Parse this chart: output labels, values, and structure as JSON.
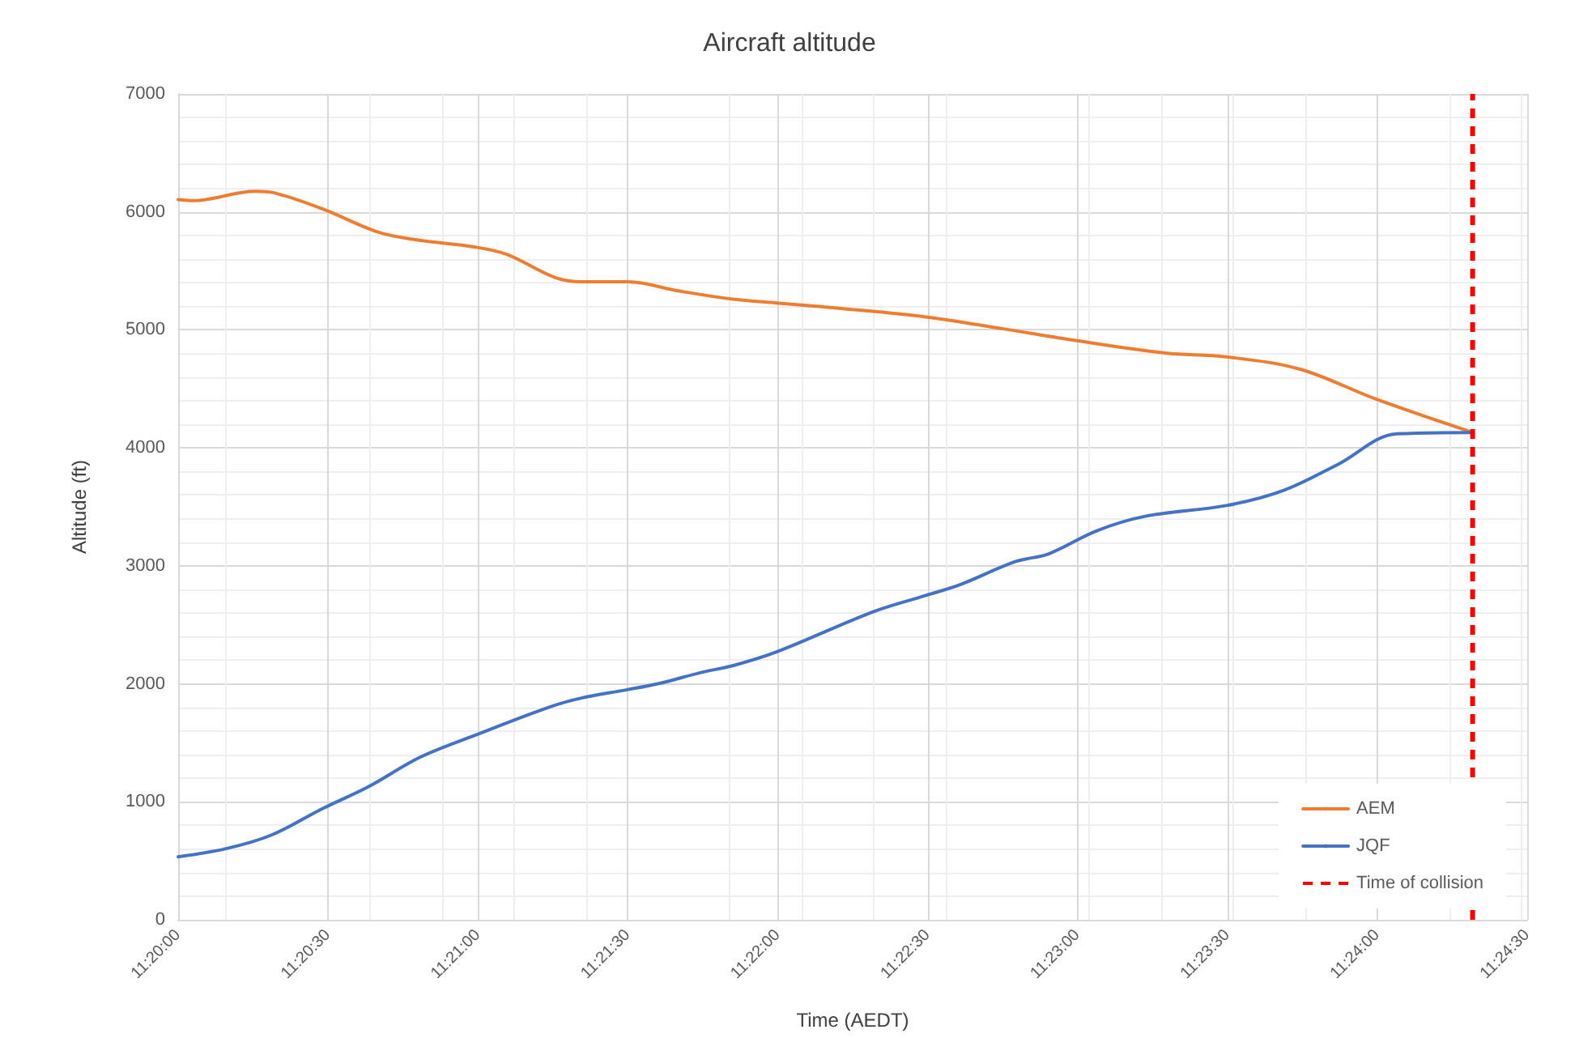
{
  "chart_data": {
    "type": "line",
    "title": "Aircraft altitude",
    "xlabel": "Time (AEDT)",
    "ylabel": "Altitude (ft)",
    "xlim": [
      11.333333,
      11.408333
    ],
    "xticks": [
      {
        "value": 11.333333,
        "label": "11:20:00"
      },
      {
        "value": 11.341667,
        "label": "11:20:30"
      },
      {
        "value": 11.35,
        "label": "11:21:00"
      },
      {
        "value": 11.358333,
        "label": "11:21:30"
      },
      {
        "value": 11.366667,
        "label": "11:22:00"
      },
      {
        "value": 11.375,
        "label": "11:22:30"
      },
      {
        "value": 11.383333,
        "label": "11:23:00"
      },
      {
        "value": 11.391667,
        "label": "11:23:30"
      },
      {
        "value": 11.4,
        "label": "11:24:00"
      },
      {
        "value": 11.408333,
        "label": "11:24:30"
      }
    ],
    "ylim": [
      0,
      7000
    ],
    "yticks": [
      0,
      1000,
      2000,
      3000,
      4000,
      5000,
      6000,
      7000
    ],
    "grid": true,
    "legend": "bottom right",
    "marker": "none",
    "line_style": "solid",
    "series": [
      {
        "name": "AEM",
        "color": "#ed7d31",
        "x": [
          11.333333,
          11.3342,
          11.3376,
          11.3387,
          11.3414,
          11.3444,
          11.3466,
          11.3498,
          11.3516,
          11.3543,
          11.3558,
          11.3583,
          11.3612,
          11.3642,
          11.3666,
          11.3702,
          11.3749,
          11.3792,
          11.3833,
          11.3882,
          11.3916,
          11.3957,
          11.3999,
          11.4053
        ],
        "values": [
          6105,
          6096,
          6174,
          6160,
          6023,
          5831,
          5763,
          5703,
          5640,
          5443,
          5407,
          5407,
          5329,
          5260,
          5228,
          5182,
          5110,
          5009,
          4908,
          4804,
          4771,
          4667,
          4415,
          4130
        ]
      },
      {
        "name": "JQF",
        "color": "#4472c4",
        "x": [
          11.333333,
          11.336,
          11.3385,
          11.3414,
          11.3439,
          11.3468,
          11.3498,
          11.354,
          11.3558,
          11.3583,
          11.3601,
          11.3624,
          11.3642,
          11.3666,
          11.372,
          11.3749,
          11.3768,
          11.3799,
          11.3817,
          11.3844,
          11.3871,
          11.3916,
          11.3948,
          11.3978,
          11.4011,
          11.4053
        ],
        "values": [
          534,
          603,
          717,
          945,
          1127,
          1379,
          1562,
          1804,
          1881,
          1950,
          2004,
          2096,
          2155,
          2270,
          2612,
          2749,
          2840,
          3037,
          3100,
          3297,
          3420,
          3511,
          3640,
          3859,
          4119,
          4130
        ]
      }
    ],
    "ref_lines": [
      {
        "axis": "x",
        "value": 11.4053,
        "label": "Time of collision",
        "color": "#ff0000",
        "line_style": "dashed"
      }
    ]
  }
}
